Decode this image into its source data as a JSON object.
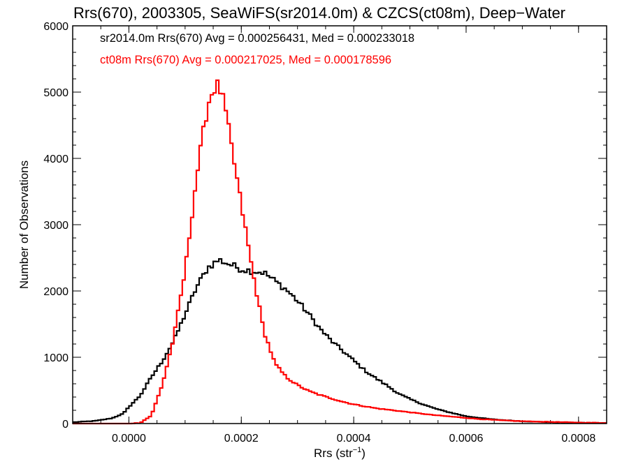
{
  "chart_data": {
    "type": "line",
    "subtype": "step-histogram",
    "title": "Rrs(670), 2003305, SeaWiFS(sr2014.0m) & CZCS(ct08m), Deep−Water",
    "xlabel": "Rrs (str",
    "xlabel_sup": "−1",
    "xlabel_close": ")",
    "ylabel": "Number of Observations",
    "xlim": [
      -0.0001,
      0.00085
    ],
    "ylim": [
      0,
      6000
    ],
    "x_ticks": [
      0.0,
      0.0002,
      0.0004,
      0.0006,
      0.0008
    ],
    "x_tick_labels": [
      "0.0000",
      "0.0002",
      "0.0004",
      "0.0006",
      "0.0008"
    ],
    "y_ticks": [
      0,
      1000,
      2000,
      3000,
      4000,
      5000,
      6000
    ],
    "y_tick_labels": [
      "0",
      "1000",
      "2000",
      "3000",
      "4000",
      "5000",
      "6000"
    ],
    "x_minor_step": 5e-05,
    "y_minor_step": 200,
    "grid": false,
    "legend_placement": "top-left",
    "bin_width": 5e-06,
    "series": [
      {
        "name": "sr2014.0m Rrs(670) Avg = 0.000256431, Med = 0.000233018",
        "color": "#000000",
        "anchors": [
          [
            -0.0001,
            20
          ],
          [
            -6e-05,
            40
          ],
          [
            -3e-05,
            80
          ],
          [
            -1e-05,
            150
          ],
          [
            0.0,
            250
          ],
          [
            2e-05,
            420
          ],
          [
            4e-05,
            700
          ],
          [
            6e-05,
            950
          ],
          [
            8e-05,
            1250
          ],
          [
            0.0001,
            1650
          ],
          [
            0.00012,
            2050
          ],
          [
            0.00014,
            2350
          ],
          [
            0.00016,
            2470
          ],
          [
            0.00018,
            2400
          ],
          [
            0.0002,
            2330
          ],
          [
            0.00022,
            2300
          ],
          [
            0.00024,
            2280
          ],
          [
            0.00026,
            2150
          ],
          [
            0.00028,
            2020
          ],
          [
            0.0003,
            1850
          ],
          [
            0.00032,
            1650
          ],
          [
            0.00034,
            1430
          ],
          [
            0.00036,
            1250
          ],
          [
            0.00038,
            1100
          ],
          [
            0.0004,
            950
          ],
          [
            0.00042,
            800
          ],
          [
            0.00044,
            680
          ],
          [
            0.00046,
            570
          ],
          [
            0.00048,
            450
          ],
          [
            0.0005,
            370
          ],
          [
            0.00052,
            300
          ],
          [
            0.00054,
            240
          ],
          [
            0.00056,
            190
          ],
          [
            0.00058,
            150
          ],
          [
            0.0006,
            110
          ],
          [
            0.00062,
            90
          ],
          [
            0.00064,
            70
          ],
          [
            0.00066,
            55
          ],
          [
            0.00068,
            45
          ],
          [
            0.0007,
            35
          ],
          [
            0.00075,
            20
          ],
          [
            0.0008,
            12
          ],
          [
            0.00085,
            8
          ]
        ]
      },
      {
        "name": "ct08m Rrs(670) Avg = 0.000217025, Med = 0.000178596",
        "color": "#ff0000",
        "anchors": [
          [
            0.0,
            0
          ],
          [
            2e-05,
            10
          ],
          [
            4e-05,
            120
          ],
          [
            6e-05,
            600
          ],
          [
            8e-05,
            1300
          ],
          [
            0.0001,
            2300
          ],
          [
            0.00012,
            3700
          ],
          [
            0.00014,
            4800
          ],
          [
            0.00015,
            5050
          ],
          [
            0.00016,
            5100
          ],
          [
            0.00017,
            4800
          ],
          [
            0.00018,
            4300
          ],
          [
            0.0002,
            3300
          ],
          [
            0.00022,
            2300
          ],
          [
            0.00024,
            1400
          ],
          [
            0.00026,
            900
          ],
          [
            0.00028,
            700
          ],
          [
            0.0003,
            580
          ],
          [
            0.00032,
            490
          ],
          [
            0.00034,
            430
          ],
          [
            0.00036,
            380
          ],
          [
            0.00038,
            330
          ],
          [
            0.0004,
            290
          ],
          [
            0.00042,
            260
          ],
          [
            0.00044,
            230
          ],
          [
            0.00046,
            210
          ],
          [
            0.00048,
            190
          ],
          [
            0.0005,
            170
          ],
          [
            0.00052,
            150
          ],
          [
            0.00054,
            130
          ],
          [
            0.00056,
            115
          ],
          [
            0.00058,
            100
          ],
          [
            0.0006,
            85
          ],
          [
            0.00062,
            70
          ],
          [
            0.00064,
            60
          ],
          [
            0.00066,
            50
          ],
          [
            0.00068,
            42
          ],
          [
            0.0007,
            35
          ],
          [
            0.00075,
            25
          ],
          [
            0.0008,
            15
          ],
          [
            0.00085,
            10
          ]
        ]
      }
    ]
  }
}
